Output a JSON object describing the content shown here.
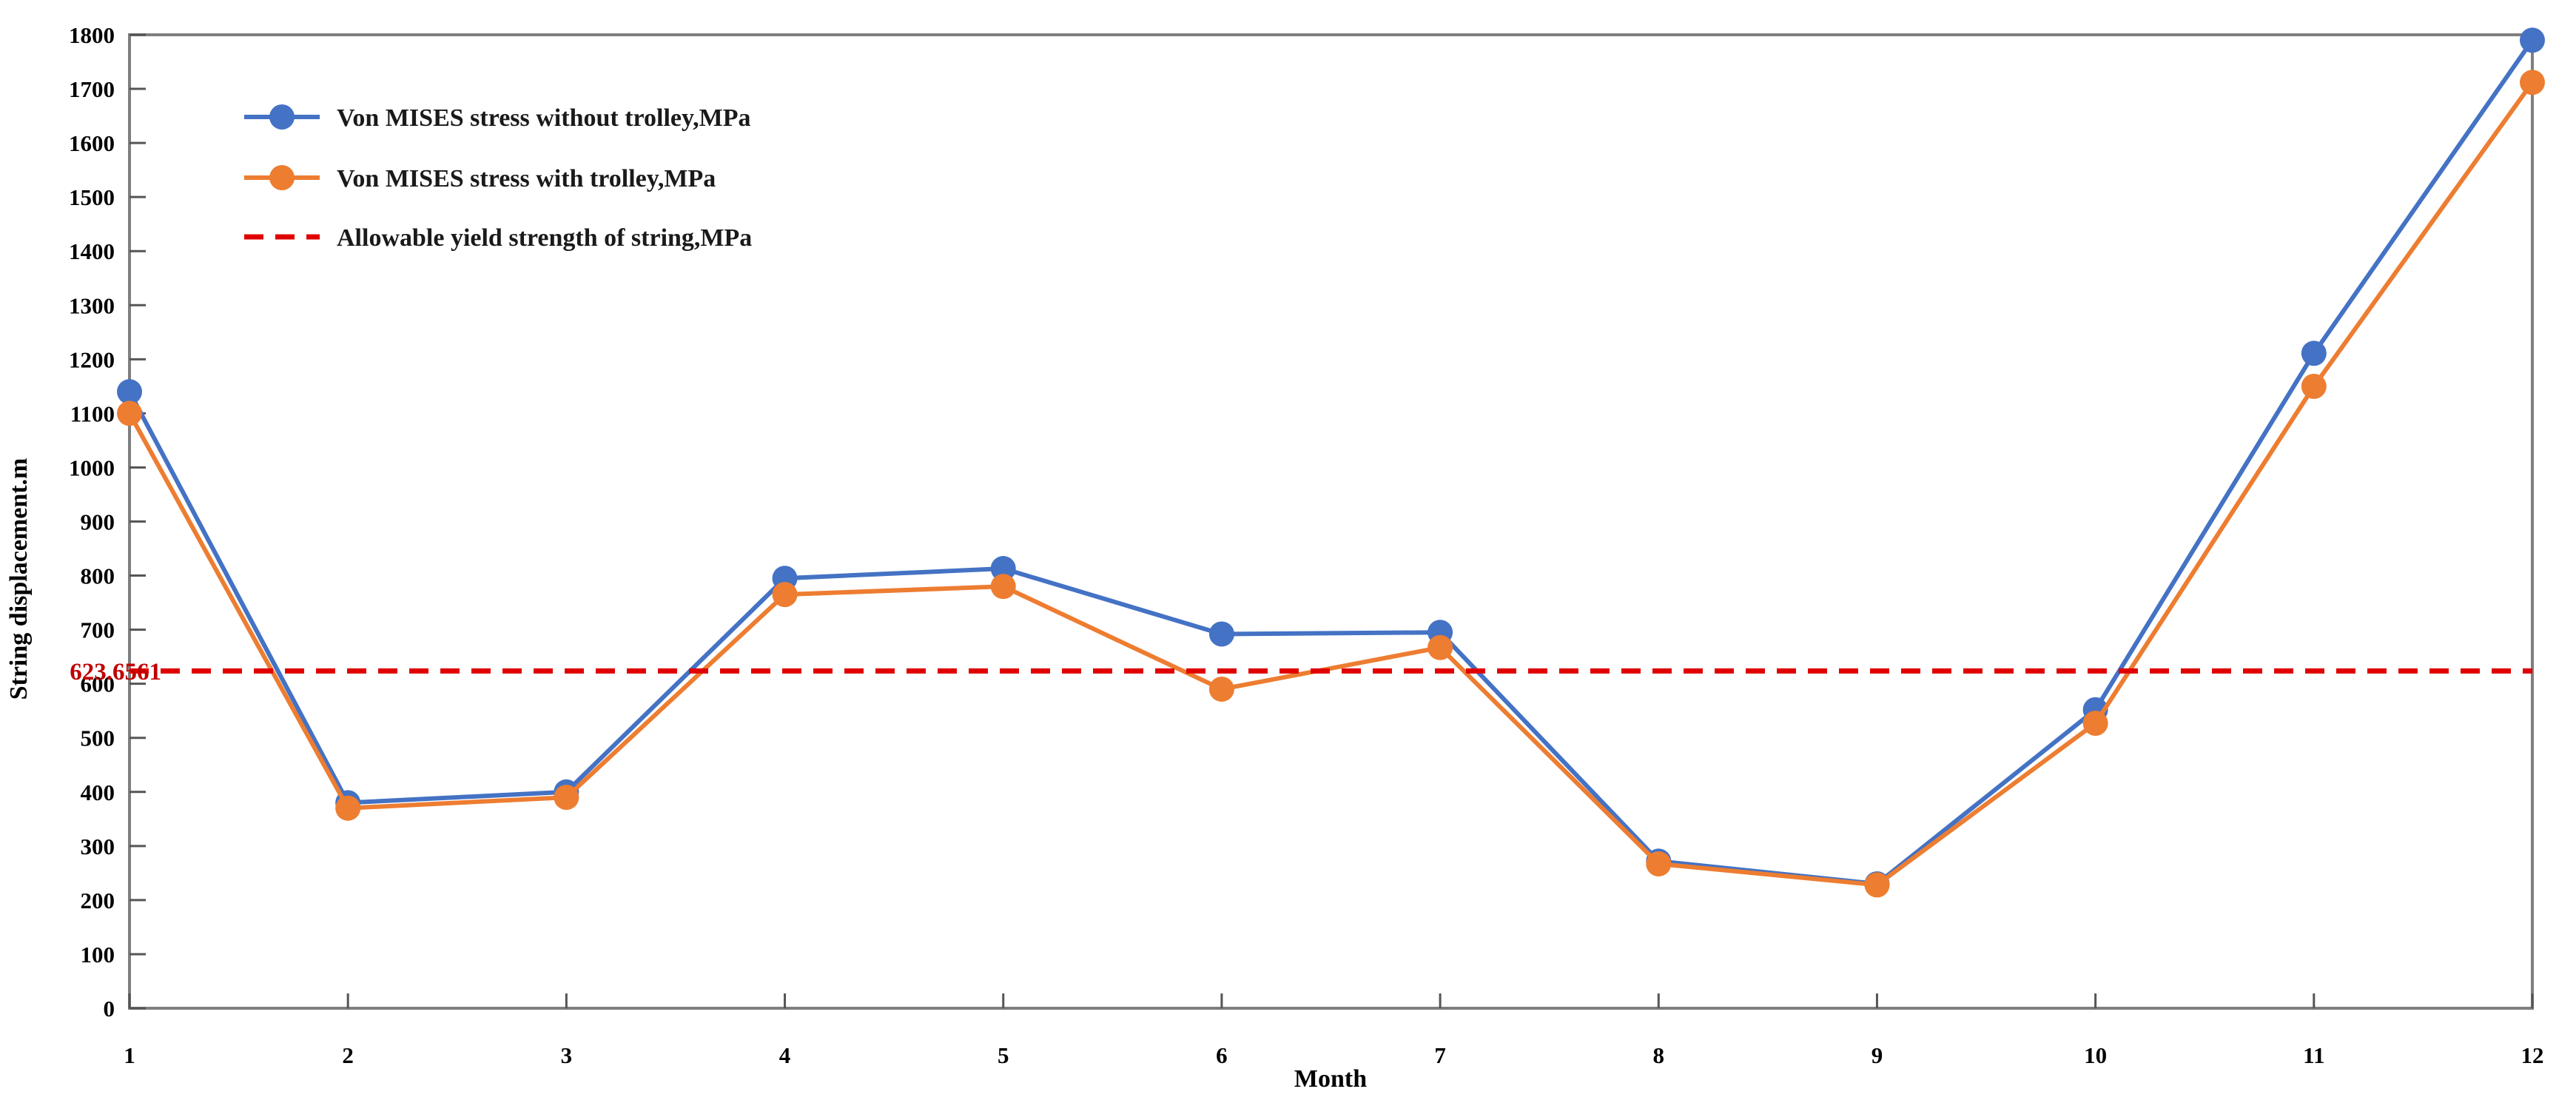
{
  "chart_data": {
    "type": "line",
    "title": "",
    "xlabel": "Month",
    "ylabel": "String displacement.m",
    "x": [
      1,
      2,
      3,
      4,
      5,
      6,
      7,
      8,
      9,
      10,
      11,
      12
    ],
    "yticks": [
      0,
      100,
      200,
      300,
      400,
      500,
      600,
      700,
      800,
      900,
      1000,
      1100,
      1200,
      1300,
      1400,
      1500,
      1600,
      1700,
      1800
    ],
    "ylim": [
      0,
      1800
    ],
    "grid": false,
    "legend_position": "top-left-inside",
    "series": [
      {
        "name": "Von MISES stress without trolley,MPa",
        "color": "#4472C4",
        "marker": "circle",
        "values": [
          1140,
          380,
          400,
          795,
          813,
          692,
          695,
          272,
          230,
          552,
          1211,
          1790
        ]
      },
      {
        "name": "Von MISES stress with trolley,MPa",
        "color": "#ED7D31",
        "marker": "circle",
        "values": [
          1100,
          370,
          390,
          765,
          780,
          590,
          667,
          267,
          228,
          527,
          1150,
          1712
        ]
      }
    ],
    "threshold": {
      "name": "Allowable yield strength of string,MPa",
      "value": 623.6561,
      "label": "623.6561",
      "line_color": "#E00000",
      "label_color": "#C00000",
      "style": "dashed"
    },
    "axis_color": "#7F7F7F",
    "tick_color": "#555555"
  }
}
